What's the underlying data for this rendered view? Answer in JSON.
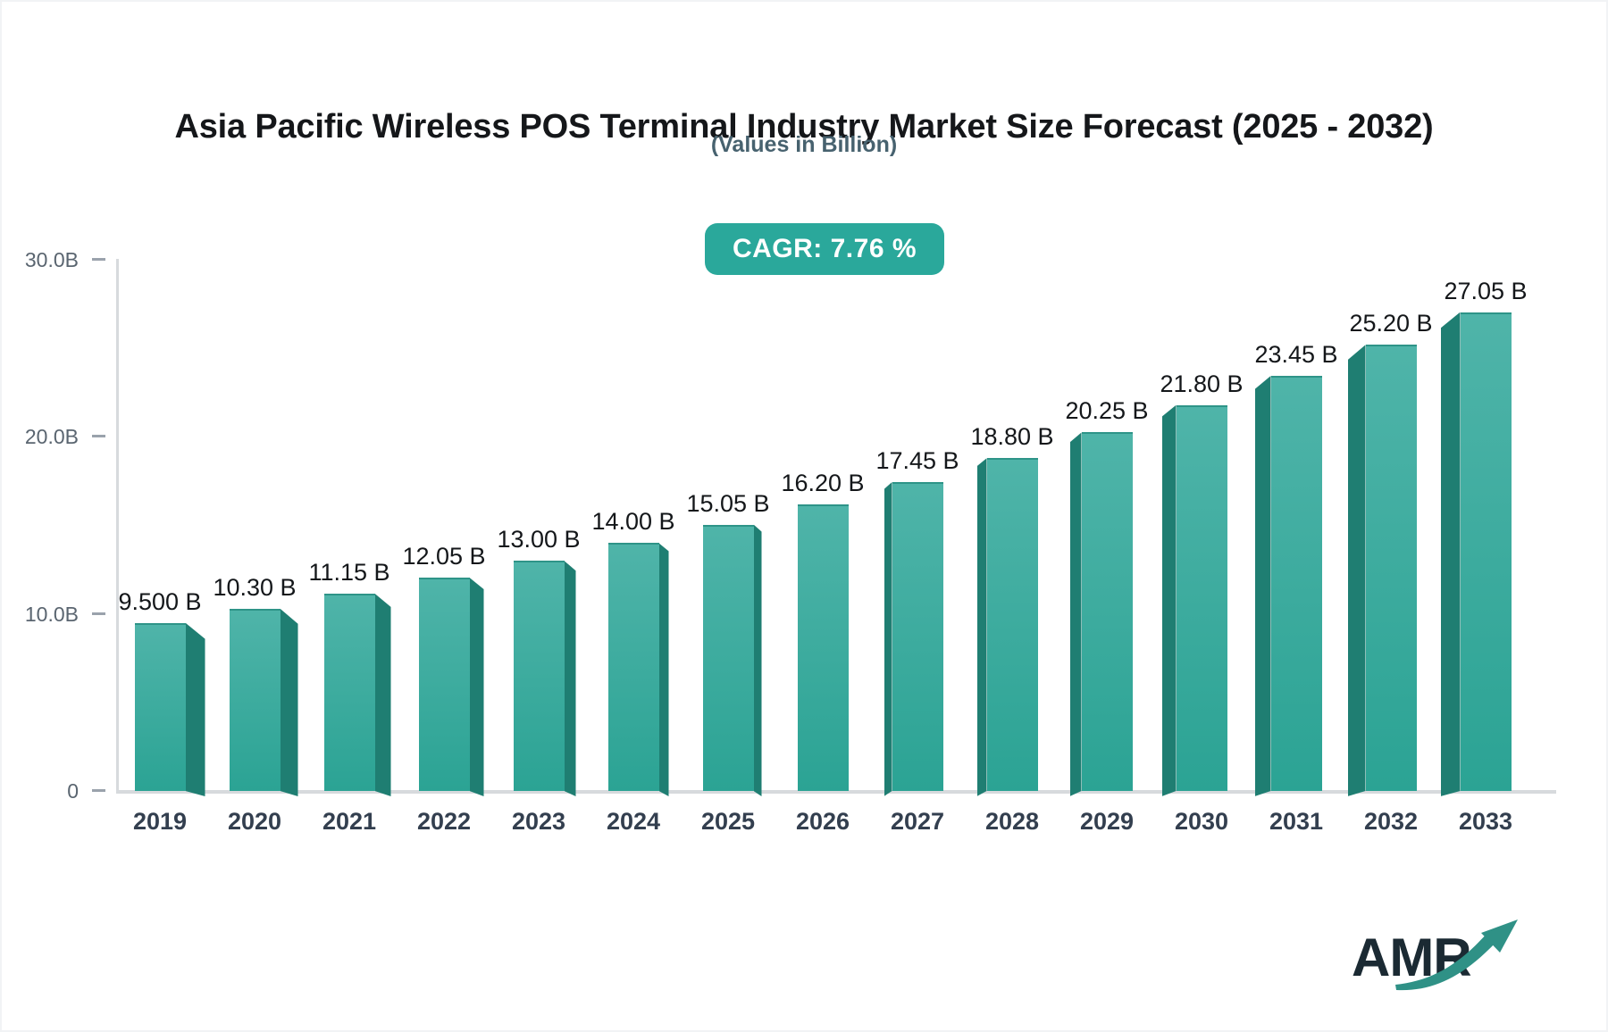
{
  "header": {
    "title": "Asia Pacific Wireless POS Terminal Industry Market Size Forecast (2025 - 2032)",
    "subtitle": "(Values in Billion)",
    "cagr_badge": "CAGR: 7.76 %"
  },
  "chart_data": {
    "type": "bar",
    "title": "Asia Pacific Wireless POS Terminal Industry Market Size Forecast (2025 - 2032)",
    "subtitle": "(Values in Billion)",
    "cagr_percent": 7.76,
    "categories": [
      "2019",
      "2020",
      "2021",
      "2022",
      "2023",
      "2024",
      "2025",
      "2026",
      "2027",
      "2028",
      "2029",
      "2030",
      "2031",
      "2032",
      "2033"
    ],
    "values": [
      9.5,
      10.3,
      11.15,
      12.05,
      13.0,
      14.0,
      15.05,
      16.2,
      17.45,
      18.8,
      20.25,
      21.8,
      23.45,
      25.2,
      27.05
    ],
    "value_labels": [
      "9.500 B",
      "10.30 B",
      "11.15 B",
      "12.05 B",
      "13.00 B",
      "14.00 B",
      "15.05 B",
      "16.20 B",
      "17.45 B",
      "18.80 B",
      "20.25 B",
      "21.80 B",
      "23.45 B",
      "25.20 B",
      "27.05 B"
    ],
    "xlabel": "",
    "ylabel": "",
    "ylim": [
      0,
      30
    ],
    "yticks": [
      {
        "value": 0,
        "label": "0"
      },
      {
        "value": 10,
        "label": "10.0B"
      },
      {
        "value": 20,
        "label": "20.0B"
      },
      {
        "value": 30,
        "label": "30.0B"
      }
    ],
    "grid": false,
    "legend": false,
    "unit": "Billion",
    "colors": {
      "bar_top": "#4fb4a9",
      "bar_bottom": "#2ba394",
      "bar_cap": "#2e9488",
      "bar_side": "#1f7e72",
      "badge_bg": "#2aa89b",
      "axis_line": "#d7dadd",
      "tick": "#9aa2ac"
    }
  },
  "logo": {
    "text": "AMR",
    "arrow_color": "#2f9186",
    "text_color": "#1b2a33"
  }
}
